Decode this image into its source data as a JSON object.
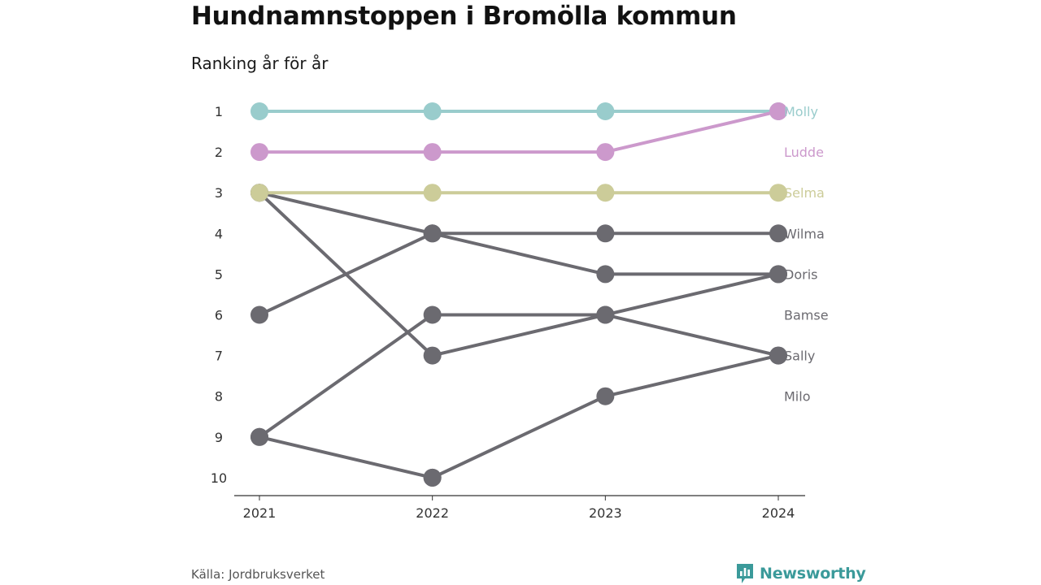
{
  "title": "Hundnamnstoppen i Bromölla kommun",
  "subtitle": "Ranking år för år",
  "source": "Källa: Jordbruksverket",
  "brand": {
    "name": "Newsworthy",
    "icon": "newsworthy-logo-icon",
    "color": "#3b9a9a"
  },
  "chart_data": {
    "type": "line",
    "title": "Hundnamnstoppen i Bromölla kommun",
    "subtitle": "Ranking år för år",
    "x": [
      "2021",
      "2022",
      "2023",
      "2024"
    ],
    "y_ticks": [
      "1",
      "2",
      "3",
      "4",
      "5",
      "6",
      "7",
      "8",
      "9",
      "10"
    ],
    "y_reversed": true,
    "ylim": [
      1,
      10
    ],
    "highlight_color": "#6b6a70",
    "end_labels": [
      "Molly",
      "Ludde",
      "Selma",
      "Wilma",
      "Doris",
      "Bamse",
      "Sally",
      "Milo"
    ],
    "series": [
      {
        "name": "Milo",
        "color": "#6b6a70",
        "values": [
          null,
          10,
          8,
          7
        ]
      },
      {
        "name": "Sally",
        "color": "#6b6a70",
        "values": [
          3,
          7,
          6,
          7
        ]
      },
      {
        "name": "Bamse",
        "color": "#6b6a70",
        "values": [
          9,
          6,
          6,
          5
        ]
      },
      {
        "name": "Doris",
        "color": "#6b6a70",
        "values": [
          3,
          4,
          5,
          5
        ]
      },
      {
        "name": "Wilma",
        "color": "#6b6a70",
        "values": [
          6,
          4,
          4,
          4
        ]
      },
      {
        "name": "",
        "color": "#6b6a70",
        "values": [
          9,
          10,
          null,
          null
        ]
      },
      {
        "name": "Selma",
        "color": "#cccc99",
        "values": [
          3,
          3,
          3,
          3
        ]
      },
      {
        "name": "Molly",
        "color": "#99cccc",
        "values": [
          1,
          1,
          1,
          1
        ]
      },
      {
        "name": "Ludde",
        "color": "#cc99cc",
        "values": [
          2,
          2,
          2,
          1
        ]
      }
    ],
    "end_label_colors": [
      "#99cccc",
      "#cc99cc",
      "#cccc99",
      "#6b6a70",
      "#6b6a70",
      "#6b6a70",
      "#6b6a70",
      "#6b6a70"
    ]
  }
}
